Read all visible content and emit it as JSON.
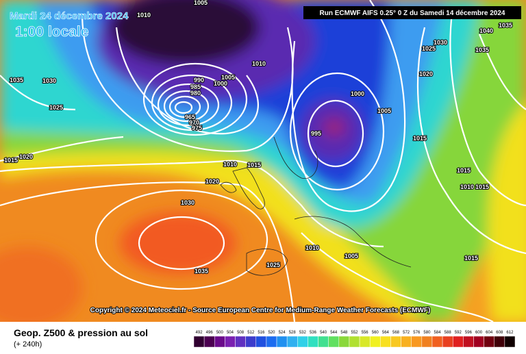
{
  "header": {
    "title": "Mardi 24 décembre 2024",
    "time": "1:00 locale",
    "run": "Run ECMWF AIFS 0.25° 0 Z du Samedi 14 décembre 2024"
  },
  "footer": {
    "copyright": "Copyright © 2024 Meteociel.fr - Source European Centre for Medium-Range Weather Forecasts (ECMWF)"
  },
  "legend": {
    "title": "Geop. Z500 & pression au sol",
    "lead": "(+ 240h)"
  },
  "scale": {
    "values": [
      492,
      496,
      500,
      504,
      508,
      512,
      516,
      520,
      524,
      528,
      532,
      536,
      540,
      544,
      548,
      552,
      556,
      560,
      564,
      568,
      572,
      576,
      580,
      584,
      588,
      592,
      596,
      600,
      604,
      608,
      612
    ]
  },
  "isobars": {
    "labels": [
      "1010",
      "1005",
      "1040",
      "1035",
      "1030",
      "1025",
      "1035",
      "1020",
      "1035",
      "1030",
      "1025",
      "1020",
      "1015",
      "1010",
      "1005",
      "990",
      "1000",
      "985",
      "980",
      "965",
      "970",
      "975",
      "1000",
      "1005",
      "995",
      "1015",
      "1010",
      "1015",
      "1020",
      "1030",
      "1035",
      "1015",
      "1010",
      "1015",
      "1010",
      "1005",
      "1025",
      "1015"
    ]
  }
}
